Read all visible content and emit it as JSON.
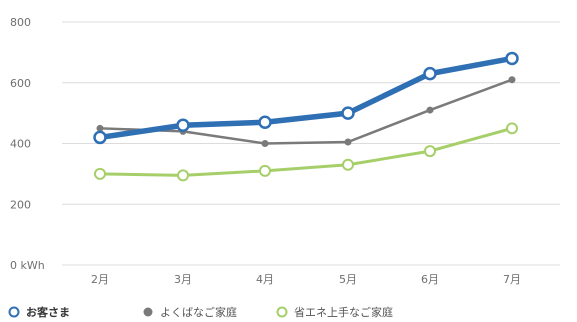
{
  "chart_data": {
    "type": "line",
    "categories": [
      "2月",
      "3月",
      "4月",
      "5月",
      "6月",
      "7月"
    ],
    "y_tick_labels": [
      "0 kWh",
      "200",
      "400",
      "600",
      "800"
    ],
    "y_ticks": [
      0,
      200,
      400,
      600,
      800
    ],
    "ylim": [
      0,
      800
    ],
    "grid": true,
    "legend_position": "bottom-left",
    "series": [
      {
        "name": "お客さま",
        "values": [
          420,
          460,
          470,
          500,
          630,
          680
        ],
        "color": "#2f6fb4"
      },
      {
        "name": "よくばなご家庭",
        "values": [
          450,
          440,
          400,
          405,
          510,
          610
        ],
        "color": "#7a7a7a"
      },
      {
        "name": "省エネ上手なご家庭",
        "values": [
          300,
          295,
          310,
          330,
          375,
          450
        ],
        "color": "#a6cf6a"
      }
    ]
  }
}
